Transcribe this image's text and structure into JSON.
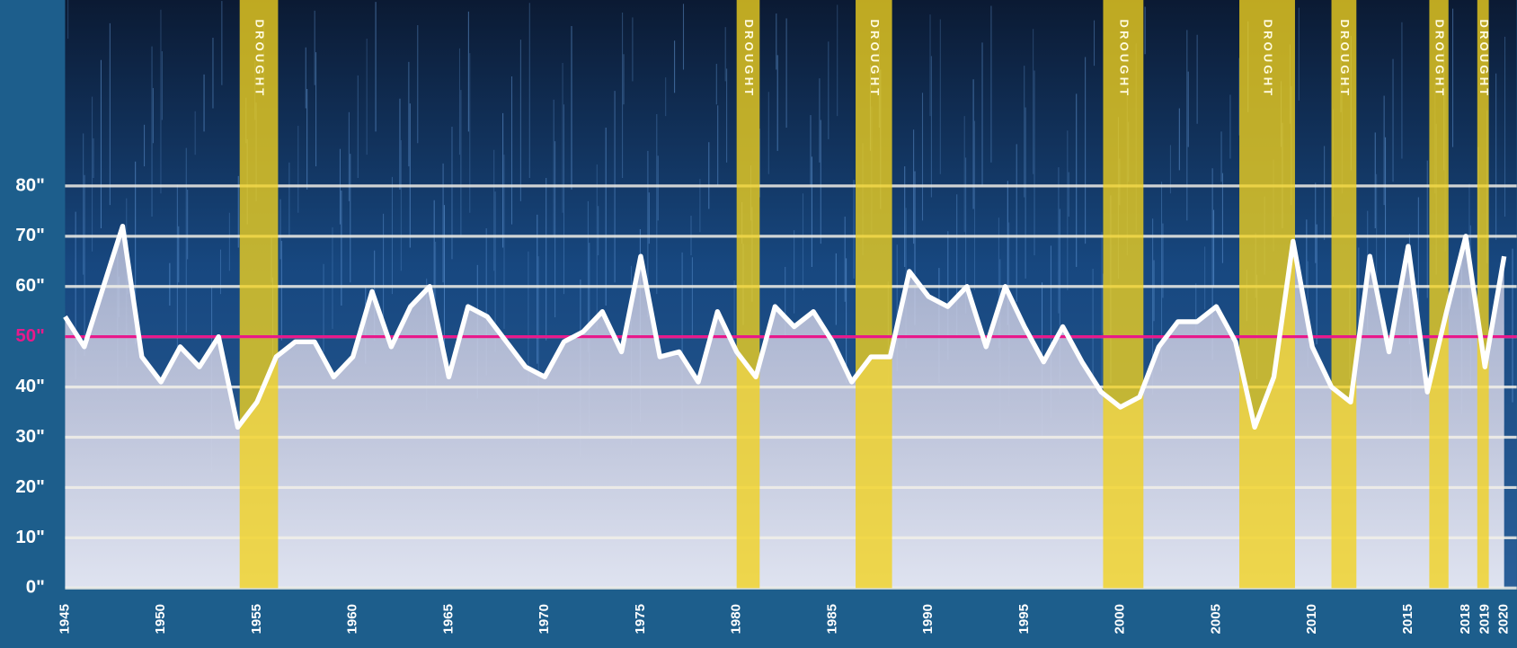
{
  "chart_data": {
    "type": "line",
    "x": [
      1945,
      1946,
      1947,
      1948,
      1949,
      1950,
      1951,
      1952,
      1953,
      1954,
      1955,
      1956,
      1957,
      1958,
      1959,
      1960,
      1961,
      1962,
      1963,
      1964,
      1965,
      1966,
      1967,
      1968,
      1969,
      1970,
      1971,
      1972,
      1973,
      1974,
      1975,
      1976,
      1977,
      1978,
      1979,
      1980,
      1981,
      1982,
      1983,
      1984,
      1985,
      1986,
      1987,
      1988,
      1989,
      1990,
      1991,
      1992,
      1993,
      1994,
      1995,
      1996,
      1997,
      1998,
      1999,
      2000,
      2001,
      2002,
      2003,
      2004,
      2005,
      2006,
      2007,
      2008,
      2009,
      2010,
      2011,
      2012,
      2013,
      2014,
      2015,
      2016,
      2017,
      2018,
      2019,
      2020
    ],
    "series": [
      {
        "color": "#ffffff",
        "values": [
          54,
          48,
          60,
          72,
          46,
          41,
          48,
          44,
          50,
          32,
          37,
          46,
          49,
          49,
          42,
          46,
          59,
          48,
          56,
          60,
          42,
          56,
          54,
          49,
          44,
          42,
          49,
          51,
          55,
          47,
          66,
          46,
          47,
          41,
          55,
          47,
          42,
          56,
          52,
          55,
          49,
          41,
          46,
          46,
          63,
          58,
          56,
          60,
          48,
          60,
          52,
          45,
          52,
          45,
          39,
          36,
          38,
          48,
          53,
          53,
          56,
          49,
          32,
          42,
          69,
          48,
          40,
          37,
          66,
          47,
          68,
          39,
          55,
          70,
          44,
          66
        ]
      }
    ],
    "average": {
      "value": 50,
      "color": "#e8198b"
    },
    "drought_color": "#f2d21e",
    "drought_periods": [
      {
        "start": 1954.1,
        "end": 1956.1,
        "label": "DROUGHT"
      },
      {
        "start": 1980.0,
        "end": 1981.2,
        "label": "DROUGHT"
      },
      {
        "start": 1986.2,
        "end": 1988.1,
        "label": "DROUGHT"
      },
      {
        "start": 1999.1,
        "end": 2001.2,
        "label": "DROUGHT"
      },
      {
        "start": 2006.2,
        "end": 2009.1,
        "label": "DROUGHT"
      },
      {
        "start": 2011.0,
        "end": 2012.3,
        "label": "DROUGHT"
      },
      {
        "start": 2016.1,
        "end": 2017.1,
        "label": "DROUGHT"
      },
      {
        "start": 2018.6,
        "end": 2019.2,
        "label": "DROUGHT"
      }
    ],
    "xlim": [
      1945,
      2020
    ],
    "xticks": [
      1945,
      1950,
      1955,
      1960,
      1965,
      1970,
      1975,
      1980,
      1985,
      1990,
      1995,
      2000,
      2005,
      2010,
      2015,
      2018,
      2019,
      2020
    ],
    "ylim": [
      0,
      117
    ],
    "yticks": [
      {
        "value": 0,
        "label": "0\""
      },
      {
        "value": 10,
        "label": "10\""
      },
      {
        "value": 20,
        "label": "20\""
      },
      {
        "value": 30,
        "label": "30\""
      },
      {
        "value": 40,
        "label": "40\""
      },
      {
        "value": 50,
        "label": "50\""
      },
      {
        "value": 60,
        "label": "60\""
      },
      {
        "value": 70,
        "label": "70\""
      },
      {
        "value": 80,
        "label": "80\""
      }
    ],
    "grid": true
  }
}
